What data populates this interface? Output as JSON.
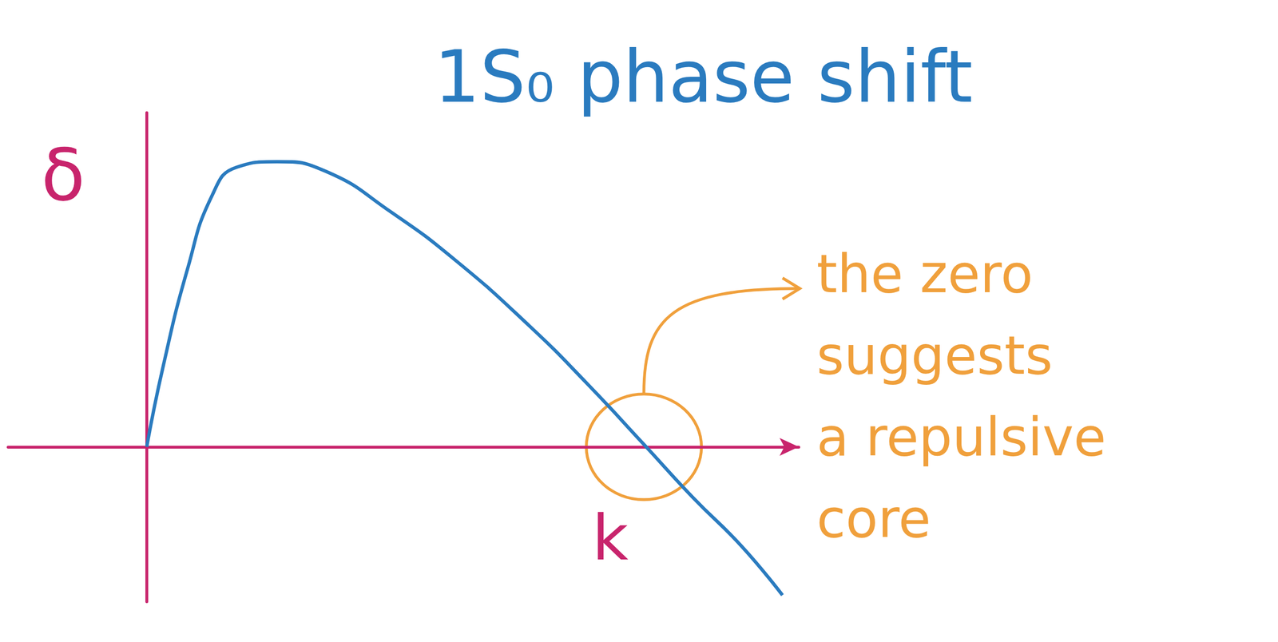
{
  "chart_data": {
    "type": "line",
    "title": "1S₀ phase shift",
    "x_label": "k",
    "y_label": "δ",
    "x": [
      0,
      0.2,
      0.5,
      0.8,
      1.1,
      1.6,
      2.2,
      3.0,
      3.8,
      4.7,
      5.4,
      6.1,
      6.7,
      7.3,
      7.8
    ],
    "values": [
      0,
      0.98,
      2.18,
      3.08,
      3.43,
      3.5,
      3.38,
      2.88,
      2.28,
      1.48,
      0.78,
      0.03,
      -0.62,
      -1.22,
      -1.82
    ],
    "color": "#2a7bbf",
    "xlim": [
      -1.7,
      8.0
    ],
    "ylim": [
      -1.9,
      4.1
    ],
    "tick_labels": false,
    "grid": false,
    "annotations": [
      {
        "text": [
          "the zero",
          "suggests",
          "a repulsive",
          "core"
        ],
        "x": 6.1,
        "y": 0
      }
    ]
  }
}
